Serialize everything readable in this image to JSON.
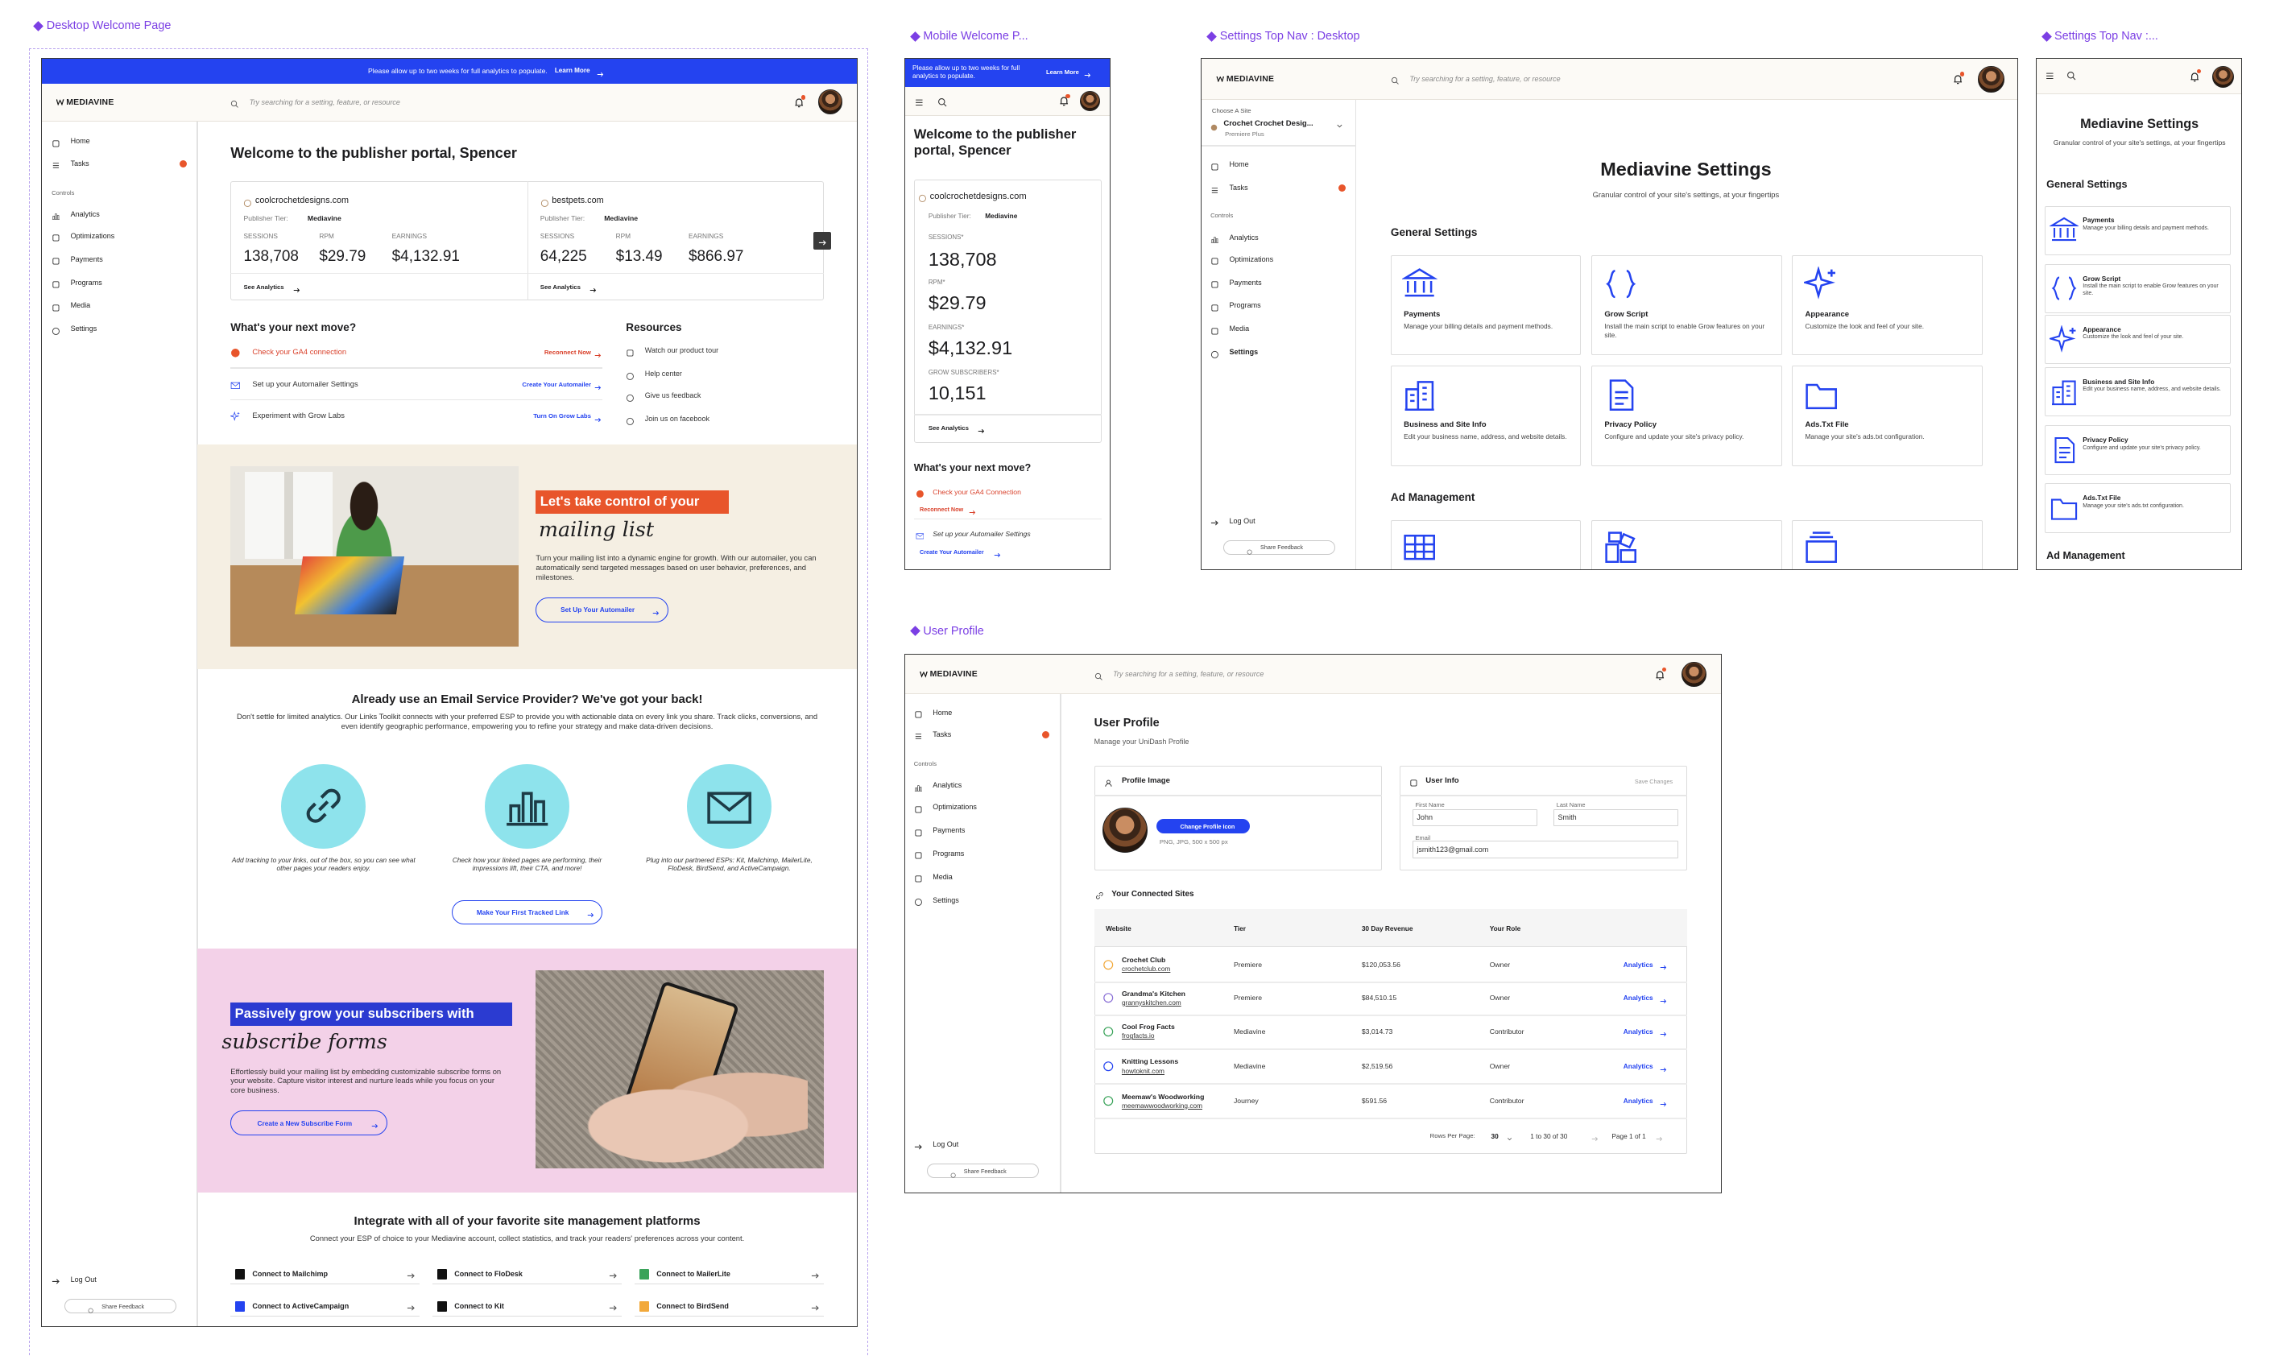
{
  "shared": {
    "banner": "Please allow up to two weeks for full analytics to populate.",
    "banner_link": "Learn More",
    "logo": "MEDIAVINE",
    "search": "Try searching for a setting, feature, or resource",
    "nav_main": [
      "Home",
      "Tasks"
    ],
    "nav_section": "Controls",
    "nav_controls": [
      "Analytics",
      "Optimizations",
      "Payments",
      "Programs",
      "Media",
      "Settings"
    ],
    "logout": "Log Out",
    "feedback": "Share Feedback"
  },
  "desktop_welcome": {
    "label": "Desktop Welcome Page",
    "welcome": "Welcome to the publisher portal, Spencer",
    "sites": [
      {
        "domain": "coolcrochetdesigns.com",
        "tier_label": "Publisher Tier:",
        "tier": "Mediavine",
        "stats": [
          {
            "label": "SESSIONS",
            "value": "138,708"
          },
          {
            "label": "RPM",
            "value": "$29.79"
          },
          {
            "label": "EARNINGS",
            "value": "$4,132.91"
          }
        ],
        "link": "See Analytics"
      },
      {
        "domain": "bestpets.com",
        "tier_label": "Publisher Tier:",
        "tier": "Mediavine",
        "stats": [
          {
            "label": "SESSIONS",
            "value": "64,225"
          },
          {
            "label": "RPM",
            "value": "$13.49"
          },
          {
            "label": "EARNINGS",
            "value": "$866.97"
          }
        ],
        "link": "See Analytics"
      }
    ],
    "next_move": {
      "title": "What's your next move?",
      "items": [
        {
          "text": "Check your GA4 connection",
          "action": "Reconnect Now"
        },
        {
          "text": "Set up your Automailer Settings",
          "action": "Create Your Automailer"
        },
        {
          "text": "Experiment with Grow Labs",
          "action": "Turn On Grow Labs"
        }
      ]
    },
    "resources": {
      "title": "Resources",
      "items": [
        "Watch our product tour",
        "Help center",
        "Give us feedback",
        "Join us on facebook"
      ]
    },
    "automailer": {
      "headline": "Let's take control of your",
      "script": "mailing list",
      "body": "Turn your mailing list into a dynamic engine for growth. With our automailer, you can automatically send targeted messages based on user behavior, preferences, and milestones.",
      "button": "Set Up Your Automailer"
    },
    "esp": {
      "title": "Already use an Email Service Provider? We've got your back!",
      "body": "Don't settle for limited analytics. Our Links Toolkit connects with your preferred ESP to provide you with actionable data on every link you share. Track clicks, conversions, and even identify geographic performance, empowering you to refine your strategy and make data-driven decisions.",
      "features": [
        "Add tracking to your links, out of the box, so you can see what other pages your readers enjoy.",
        "Check how your linked pages are performing, their impressions lift, their CTA, and more!",
        "Plug into our partnered ESPs: Kit, Mailchimp, MailerLite, FloDesk, BirdSend, and ActiveCampaign."
      ],
      "button": "Make Your First Tracked Link"
    },
    "subscribe": {
      "headline": "Passively grow your subscribers with",
      "script": "subscribe forms",
      "body": "Effortlessly build your mailing list by embedding customizable subscribe forms on your website. Capture visitor interest and nurture leads while you focus on your core business.",
      "button": "Create a New Subscribe Form"
    },
    "integrate": {
      "title": "Integrate with all of your favorite site management platforms",
      "subtitle": "Connect your ESP of choice to your Mediavine account, collect statistics, and track your readers' preferences across your content.",
      "connections": [
        "Connect to Mailchimp",
        "Connect to FloDesk",
        "Connect to MailerLite",
        "Connect to ActiveCampaign",
        "Connect to Kit",
        "Connect to BirdSend"
      ]
    }
  },
  "mobile_welcome": {
    "label": "Mobile Welcome P...",
    "welcome": "Welcome to the publisher portal, Spencer",
    "site": {
      "domain": "coolcrochetdesigns.com",
      "tier_label": "Publisher Tier:",
      "tier": "Mediavine",
      "stats": [
        {
          "label": "SESSIONS*",
          "value": "138,708"
        },
        {
          "label": "RPM*",
          "value": "$29.79"
        },
        {
          "label": "EARNINGS*",
          "value": "$4,132.91"
        },
        {
          "label": "GROW SUBSCRIBERS*",
          "value": "10,151"
        }
      ],
      "link": "See Analytics"
    },
    "next_move": {
      "title": "What's your next move?",
      "items": [
        {
          "text": "Check your GA4 Connection",
          "action": "Reconnect Now"
        },
        {
          "text": "Set up your Automailer Settings",
          "action": "Create Your Automailer"
        }
      ]
    }
  },
  "settings_desktop": {
    "label": "Settings Top Nav : Desktop",
    "site_picker": {
      "label": "Choose A Site",
      "site": "Crochet Crochet Desig...",
      "tier": "Premiere Plus"
    },
    "title": "Mediavine Settings",
    "subtitle": "Granular control of your site's settings, at your fingertips",
    "general": "General Settings",
    "cards": [
      {
        "title": "Payments",
        "desc": "Manage your billing details and payment methods."
      },
      {
        "title": "Grow Script",
        "desc": "Install the main script to enable Grow features on your site."
      },
      {
        "title": "Appearance",
        "desc": "Customize the look and feel of your site."
      },
      {
        "title": "Business and Site Info",
        "desc": "Edit your business name, address, and website details."
      },
      {
        "title": "Privacy Policy",
        "desc": "Configure and update your site's privacy policy."
      },
      {
        "title": "Ads.Txt File",
        "desc": "Manage your site's ads.txt configuration."
      }
    ],
    "ad_management": "Ad Management"
  },
  "settings_mobile": {
    "label": "Settings Top Nav :...",
    "title": "Mediavine Settings",
    "subtitle": "Granular control of your site's settings, at your fingertips",
    "general": "General Settings",
    "ad_management": "Ad Management"
  },
  "user_profile": {
    "label": "User Profile",
    "title": "User Profile",
    "subtitle": "Manage your UniDash Profile",
    "profile_image": {
      "title": "Profile Image",
      "button": "Change Profile Icon",
      "hint": "PNG, JPG, 500 x 500 px"
    },
    "user_info": {
      "title": "User Info",
      "save": "Save Changes",
      "first_label": "First Name",
      "first": "John",
      "last_label": "Last Name",
      "last": "Smith",
      "email_label": "Email",
      "email": "jsmith123@gmail.com"
    },
    "sites_title": "Your Connected Sites",
    "columns": [
      "Website",
      "Tier",
      "30 Day Revenue",
      "Your Role"
    ],
    "rows": [
      {
        "name": "Crochet Club",
        "domain": "crochetclub.com",
        "tier": "Premiere",
        "revenue": "$120,053.56",
        "role": "Owner",
        "action": "Analytics"
      },
      {
        "name": "Grandma's Kitchen",
        "domain": "grannyskitchen.com",
        "tier": "Premiere",
        "revenue": "$84,510.15",
        "role": "Owner",
        "action": "Analytics"
      },
      {
        "name": "Cool Frog Facts",
        "domain": "frogfacts.io",
        "tier": "Mediavine",
        "revenue": "$3,014.73",
        "role": "Contributor",
        "action": "Analytics"
      },
      {
        "name": "Knitting Lessons",
        "domain": "howtoknit.com",
        "tier": "Mediavine",
        "revenue": "$2,519.56",
        "role": "Owner",
        "action": "Analytics"
      },
      {
        "name": "Meemaw's Woodworking",
        "domain": "meemawwoodworking.com",
        "tier": "Journey",
        "revenue": "$591.56",
        "role": "Contributor",
        "action": "Analytics"
      }
    ],
    "pager": {
      "rows_label": "Rows Per Page:",
      "rows": "30",
      "range": "1 to 30 of 30",
      "page": "Page 1 of 1"
    }
  }
}
